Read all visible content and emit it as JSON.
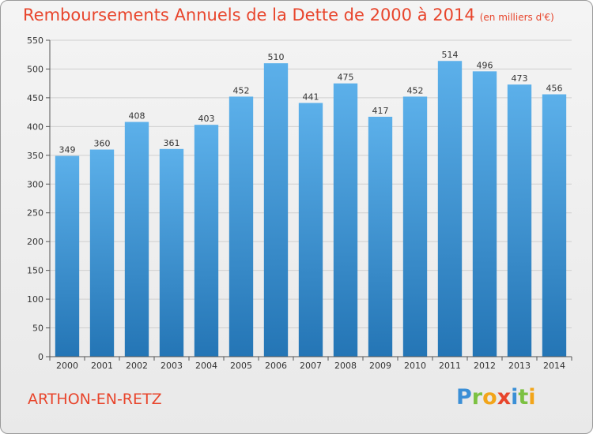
{
  "header": {
    "title": "Remboursements Annuels de la Dette de 2000 à 2014",
    "subtitle": "(en milliers d'€)"
  },
  "footer": {
    "commune": "ARTHON-EN-RETZ",
    "logo_letters": [
      {
        "ch": "P",
        "color": "#3b8fd6"
      },
      {
        "ch": "r",
        "color": "#7cc142"
      },
      {
        "ch": "o",
        "color": "#f2a51a"
      },
      {
        "ch": "x",
        "color": "#e8452c"
      },
      {
        "ch": "i",
        "color": "#3b8fd6"
      },
      {
        "ch": "t",
        "color": "#7cc142"
      },
      {
        "ch": "i",
        "color": "#f2a51a"
      }
    ]
  },
  "colors": {
    "bar_top": "#5cb0ea",
    "bar_bottom": "#2475b5",
    "accent": "#e8452c",
    "grid": "#cfcfcf"
  },
  "chart_data": {
    "type": "bar",
    "categories": [
      "2000",
      "2001",
      "2002",
      "2003",
      "2004",
      "2005",
      "2006",
      "2007",
      "2008",
      "2009",
      "2010",
      "2011",
      "2012",
      "2013",
      "2014"
    ],
    "values": [
      349,
      360,
      408,
      361,
      403,
      452,
      510,
      441,
      475,
      417,
      452,
      514,
      496,
      473,
      456
    ],
    "title": "Remboursements Annuels de la Dette de 2000 à 2014",
    "subtitle": "(en milliers d'€)",
    "ylim": [
      0,
      550
    ],
    "yticks": [
      0,
      50,
      100,
      150,
      200,
      250,
      300,
      350,
      400,
      450,
      500,
      550
    ],
    "grid": true,
    "data_labels": true
  }
}
